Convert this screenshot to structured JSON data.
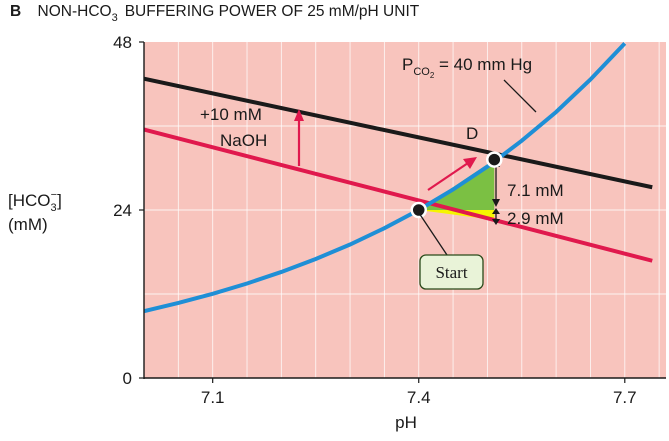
{
  "header": {
    "panel_letter": "B",
    "title_prefix": "NON-HCO",
    "title_sub": "3",
    "title_suffix": "BUFFERING POWER OF 25 mM/pH UNIT"
  },
  "chart_data": {
    "type": "line",
    "xlabel": "pH",
    "ylabel": {
      "main": "[HCO",
      "sub": "3",
      "sup": "−",
      "close": "]",
      "units": "(mM)"
    },
    "xlim": [
      7.0,
      7.76
    ],
    "ylim": [
      0,
      48
    ],
    "x_ticks": [
      {
        "value": 7.1,
        "label": "7.1"
      },
      {
        "value": 7.4,
        "label": "7.4"
      },
      {
        "value": 7.7,
        "label": "7.7"
      }
    ],
    "y_ticks": [
      {
        "value": 0,
        "label": "0"
      },
      {
        "value": 24,
        "label": "24"
      },
      {
        "value": 48,
        "label": "48"
      }
    ],
    "grid": true,
    "plot_bg": "#f8c4bd",
    "series": [
      {
        "name": "",
        "color": "#1a1a1a",
        "x": [
          7.0,
          7.74
        ],
        "y": [
          42.75,
          27.25
        ]
      },
      {
        "name": "",
        "color": "#e0194d",
        "x": [
          7.0,
          7.74
        ],
        "y": [
          35.5,
          16.75
        ]
      },
      {
        "name": "",
        "color": "#1f8fd6",
        "x": [
          7.0,
          7.05,
          7.1,
          7.15,
          7.2,
          7.25,
          7.3,
          7.35,
          7.4,
          7.45,
          7.5,
          7.55,
          7.6,
          7.65,
          7.7
        ],
        "y": [
          9.55,
          10.72,
          12.03,
          13.5,
          15.15,
          17.0,
          19.07,
          21.4,
          24.0,
          26.93,
          30.2,
          33.9,
          38.0,
          42.65,
          47.8
        ]
      }
    ],
    "points": [
      {
        "name": "",
        "x": 7.4,
        "y": 24.0
      },
      {
        "name": "D",
        "x": 7.51,
        "y": 31.2
      }
    ],
    "annotations": {
      "pco2_line1": "P",
      "pco2_sub": "CO",
      "pco2_sub2": "2",
      "pco2_rest": " = 40 mm Hg",
      "naoh_line1": "+10 mM",
      "naoh_line2": "NaOH",
      "point_d": "D",
      "delta_green": "7.1 mM",
      "delta_yellow": "2.9 mM",
      "start_label": "Start"
    },
    "colors": {
      "green_region": "#7bc043",
      "yellow_region": "#f5f500",
      "arrow": "#e0194d",
      "start_box_fill": "#e9f3d8",
      "start_box_stroke": "#2a4a1a"
    }
  }
}
